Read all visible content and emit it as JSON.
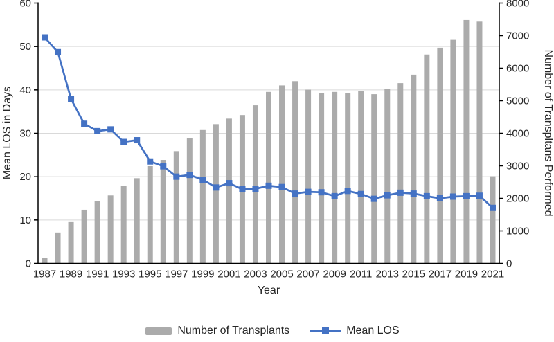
{
  "chart_data": {
    "type": "bar",
    "subtype": "combo-bar-line",
    "title": "",
    "categories": [
      1987,
      1988,
      1989,
      1990,
      1991,
      1992,
      1993,
      1994,
      1995,
      1996,
      1997,
      1998,
      1999,
      2000,
      2001,
      2002,
      2003,
      2004,
      2005,
      2006,
      2007,
      2008,
      2009,
      2010,
      2011,
      2012,
      2013,
      2014,
      2015,
      2016,
      2017,
      2018,
      2019,
      2020,
      2021
    ],
    "series": [
      {
        "name": "Number of Transplants",
        "type": "bar",
        "axis": "right",
        "color": "#ABABAB",
        "values": [
          180,
          950,
          1290,
          1650,
          1920,
          2090,
          2390,
          2620,
          2990,
          3180,
          3450,
          3840,
          4100,
          4280,
          4450,
          4560,
          4860,
          5270,
          5470,
          5600,
          5340,
          5230,
          5270,
          5240,
          5300,
          5200,
          5360,
          5540,
          5800,
          6420,
          6630,
          6870,
          7480,
          7430,
          2680
        ]
      },
      {
        "name": "Mean LOS",
        "type": "line",
        "axis": "left",
        "color": "#4472C4",
        "marker": "square",
        "values": [
          52.1,
          48.7,
          37.9,
          32.2,
          30.5,
          30.9,
          28.0,
          28.4,
          23.5,
          22.4,
          20.0,
          20.4,
          19.3,
          17.5,
          18.5,
          17.1,
          17.2,
          17.9,
          17.6,
          16.1,
          16.5,
          16.4,
          15.5,
          16.7,
          16.0,
          14.9,
          15.7,
          16.3,
          16.1,
          15.5,
          15.0,
          15.4,
          15.5,
          15.6,
          12.8
        ]
      }
    ],
    "left_axis": {
      "title": "Mean LOS in Days",
      "min": 0,
      "max": 60,
      "ticks": [
        0,
        10,
        20,
        30,
        40,
        50,
        60
      ]
    },
    "right_axis": {
      "title": "Number of Transpltans Performed",
      "min": 0,
      "max": 8000,
      "ticks": [
        0,
        1000,
        2000,
        3000,
        4000,
        5000,
        6000,
        7000,
        8000
      ]
    },
    "x_axis": {
      "title": "Year",
      "label_interval": 2
    },
    "legend": {
      "position": "bottom",
      "items": [
        "Number of Transplants",
        "Mean LOS"
      ]
    },
    "grid": "horizontal",
    "grid_color": "#D9D9D9",
    "axis_color": "#000000",
    "text_color": "#262626",
    "background": "#FFFFFF"
  }
}
